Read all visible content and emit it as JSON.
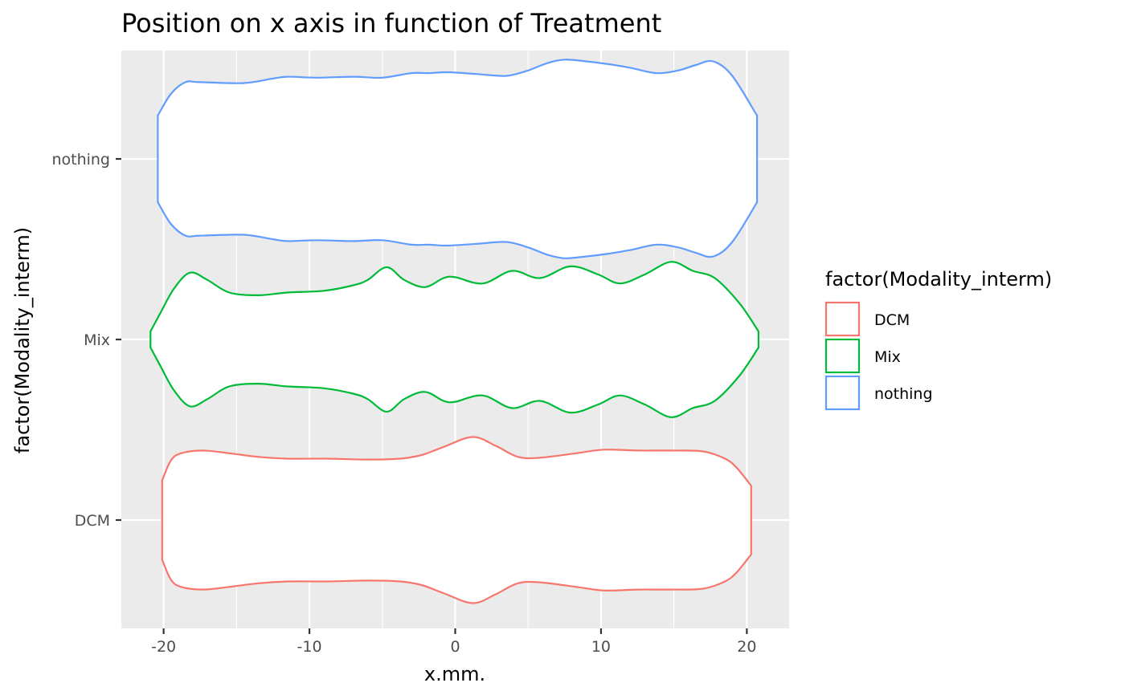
{
  "chart_data": {
    "type": "violin",
    "orientation": "horizontal",
    "title": "Position on x axis in function of Treatment",
    "xlabel": "x.mm.",
    "ylabel": "factor(Modality_interm)",
    "xlim": [
      -22.9,
      22.9
    ],
    "x_ticks": [
      -20,
      -10,
      0,
      10,
      20
    ],
    "x_tick_labels": [
      "-20",
      "-10",
      "0",
      "10",
      "20"
    ],
    "categories": [
      "DCM",
      "Mix",
      "nothing"
    ],
    "grid": true,
    "panel_background": "#ebebeb",
    "legend": {
      "title": "factor(Modality_interm)",
      "placement": "right",
      "entries": [
        "DCM",
        "Mix",
        "nothing"
      ]
    },
    "series": [
      {
        "name": "DCM",
        "color": "#f8766d",
        "profile_x": [
          -20.1,
          -19.5,
          -18.8,
          -17.3,
          -15.5,
          -13.5,
          -11.5,
          -8.8,
          -6.0,
          -3.8,
          -2.3,
          -0.8,
          1.2,
          2.8,
          4.3,
          5.8,
          8.3,
          10.2,
          12.5,
          14.8,
          17.0,
          18.5,
          19.3,
          20.3
        ],
        "profile_halfwidth": [
          0.22,
          0.33,
          0.37,
          0.385,
          0.37,
          0.35,
          0.34,
          0.34,
          0.335,
          0.34,
          0.36,
          0.405,
          0.46,
          0.41,
          0.35,
          0.345,
          0.37,
          0.39,
          0.385,
          0.385,
          0.38,
          0.34,
          0.29,
          0.19
        ]
      },
      {
        "name": "Mix",
        "color": "#00ba38",
        "profile_x": [
          -20.9,
          -20.2,
          -19.3,
          -18.2,
          -17.0,
          -15.5,
          -13.5,
          -11.5,
          -9.0,
          -7.0,
          -6.0,
          -4.7,
          -3.5,
          -2.1,
          -0.8,
          0.0,
          1.9,
          3.9,
          5.8,
          7.9,
          9.8,
          11.3,
          13.0,
          14.8,
          16.3,
          17.8,
          19.5,
          20.8
        ],
        "profile_halfwidth": [
          0.045,
          0.15,
          0.28,
          0.37,
          0.33,
          0.26,
          0.245,
          0.26,
          0.27,
          0.3,
          0.33,
          0.4,
          0.33,
          0.29,
          0.34,
          0.345,
          0.31,
          0.38,
          0.34,
          0.405,
          0.36,
          0.31,
          0.36,
          0.43,
          0.38,
          0.34,
          0.2,
          0.045
        ]
      },
      {
        "name": "nothing",
        "color": "#619cff",
        "profile_x": [
          -20.4,
          -19.5,
          -18.5,
          -17.5,
          -14.5,
          -12.5,
          -11.5,
          -9.5,
          -7.0,
          -5.0,
          -3.0,
          -1.8,
          -0.5,
          1.5,
          3.5,
          5.0,
          6.3,
          7.5,
          9.0,
          10.5,
          12.0,
          13.8,
          15.3,
          16.5,
          17.7,
          19.0,
          20.7
        ],
        "profile_halfwidth": [
          0.24,
          0.36,
          0.425,
          0.425,
          0.42,
          0.445,
          0.455,
          0.45,
          0.455,
          0.45,
          0.475,
          0.475,
          0.48,
          0.47,
          0.46,
          0.49,
          0.53,
          0.55,
          0.54,
          0.525,
          0.505,
          0.475,
          0.49,
          0.52,
          0.54,
          0.46,
          0.24
        ]
      }
    ]
  }
}
